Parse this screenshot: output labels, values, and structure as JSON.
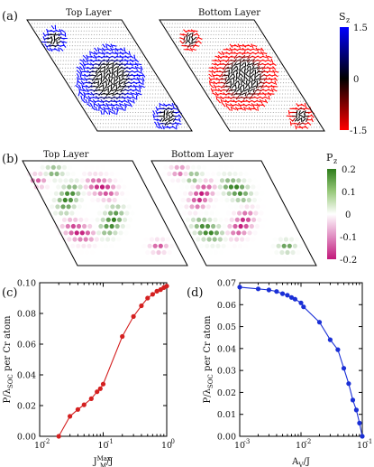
{
  "panels": {
    "a": {
      "label": "(a)",
      "titles": [
        "Top Layer",
        "Bottom Layer"
      ],
      "colorbar": {
        "label": "S",
        "label_sub": "z",
        "ticks": [
          "1.5",
          "0",
          "-1.5"
        ],
        "colors": [
          "#0000ff",
          "#000000",
          "#ff0000"
        ]
      }
    },
    "b": {
      "label": "(b)",
      "titles": [
        "Top Layer",
        "Bottom Layer"
      ],
      "colorbar": {
        "label": "P",
        "label_sub": "z",
        "ticks": [
          "0.2",
          "0.1",
          "0",
          "-0.1",
          "-0.2"
        ],
        "colors": [
          "#2e7d1b",
          "#ffffff",
          "#c2187a"
        ]
      }
    }
  },
  "chart_data": [
    {
      "panel": "(c)",
      "type": "line",
      "xscale": "log",
      "xlim": [
        0.01,
        1
      ],
      "ylim": [
        0,
        0.1
      ],
      "xticks": [
        {
          "v": 0.01,
          "base": "10",
          "exp": "-2"
        },
        {
          "v": 0.1,
          "base": "10",
          "exp": "-1"
        },
        {
          "v": 1,
          "base": "10",
          "exp": "0"
        }
      ],
      "yticks": [
        "0.00",
        "0.02",
        "0.04",
        "0.06",
        "0.08",
        "0.10"
      ],
      "xlabel": {
        "base": "J",
        "sub": "M",
        "sup": "Max",
        "tail": "/J"
      },
      "ylabel": {
        "pre": "P/λ",
        "sub": "SOC",
        "post": " per Cr atom"
      },
      "color": "#d42020",
      "points": [
        [
          0.02,
          0.0
        ],
        [
          0.03,
          0.013
        ],
        [
          0.04,
          0.0175
        ],
        [
          0.05,
          0.0205
        ],
        [
          0.065,
          0.0245
        ],
        [
          0.08,
          0.029
        ],
        [
          0.09,
          0.031
        ],
        [
          0.1,
          0.034
        ],
        [
          0.2,
          0.065
        ],
        [
          0.3,
          0.078
        ],
        [
          0.4,
          0.085
        ],
        [
          0.5,
          0.09
        ],
        [
          0.6,
          0.0925
        ],
        [
          0.7,
          0.0945
        ],
        [
          0.8,
          0.0955
        ],
        [
          0.9,
          0.0968
        ],
        [
          1.0,
          0.0978
        ]
      ]
    },
    {
      "panel": "(d)",
      "type": "line",
      "xscale": "log",
      "xlim": [
        0.001,
        0.1
      ],
      "ylim": [
        0,
        0.07
      ],
      "xticks": [
        {
          "v": 0.001,
          "base": "10",
          "exp": "-3"
        },
        {
          "v": 0.01,
          "base": "10",
          "exp": "-2"
        },
        {
          "v": 0.1,
          "base": "10",
          "exp": "-1"
        }
      ],
      "yticks": [
        "0.00",
        "0.01",
        "0.02",
        "0.03",
        "0.04",
        "0.05",
        "0.06",
        "0.07"
      ],
      "xlabel": {
        "base": "A",
        "sub": "V",
        "sup": "",
        "tail": "/J"
      },
      "ylabel": {
        "pre": "P/λ",
        "sub": "SOC",
        "post": " per Cr atom"
      },
      "color": "#1a2fd6",
      "points": [
        [
          0.001,
          0.068
        ],
        [
          0.002,
          0.0672
        ],
        [
          0.003,
          0.0667
        ],
        [
          0.004,
          0.066
        ],
        [
          0.005,
          0.065
        ],
        [
          0.006,
          0.0643
        ],
        [
          0.007,
          0.0633
        ],
        [
          0.008,
          0.0625
        ],
        [
          0.01,
          0.0608
        ],
        [
          0.011,
          0.059
        ],
        [
          0.02,
          0.052
        ],
        [
          0.03,
          0.044
        ],
        [
          0.04,
          0.0395
        ],
        [
          0.05,
          0.031
        ],
        [
          0.06,
          0.024
        ],
        [
          0.07,
          0.0165
        ],
        [
          0.08,
          0.012
        ],
        [
          0.09,
          0.006
        ],
        [
          0.1,
          0.0
        ]
      ]
    }
  ]
}
